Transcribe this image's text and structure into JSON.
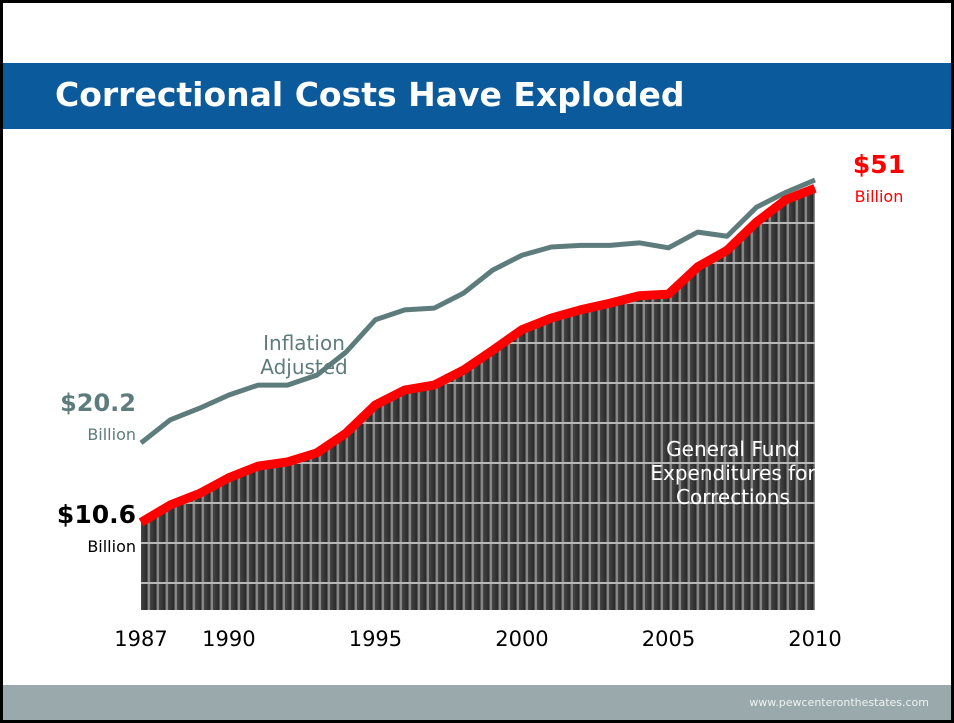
{
  "chart_data": {
    "type": "line",
    "title": "Correctional Costs Have Exploded",
    "source": "www.pewcenteronthestates.com",
    "x": [
      1987,
      1988,
      1989,
      1990,
      1991,
      1992,
      1993,
      1994,
      1995,
      1996,
      1997,
      1998,
      1999,
      2000,
      2001,
      2002,
      2003,
      2004,
      2005,
      2006,
      2007,
      2008,
      2009,
      2010
    ],
    "xlim": [
      1987,
      2010
    ],
    "xticks": [
      1987,
      1990,
      1995,
      2000,
      2005,
      2010
    ],
    "ylim": [
      0,
      52
    ],
    "series": [
      {
        "name": "Inflation Adjusted",
        "color": "#5f7c7c",
        "values": [
          20.2,
          23.0,
          24.4,
          26.0,
          27.2,
          27.2,
          28.4,
          31.2,
          35.1,
          36.3,
          36.5,
          38.3,
          41.1,
          42.9,
          43.9,
          44.1,
          44.1,
          44.4,
          43.8,
          45.7,
          45.2,
          48.7,
          50.5,
          52.0
        ],
        "value_labels": [
          "$20.2",
          null,
          null,
          null,
          null,
          null,
          null,
          null,
          null,
          null,
          null,
          null,
          null,
          null,
          null,
          null,
          null,
          null,
          null,
          null,
          null,
          null,
          null,
          null
        ]
      },
      {
        "name": "General Fund Expenditures for Corrections",
        "color": "#ff0000",
        "values": [
          10.6,
          12.7,
          14.1,
          16.0,
          17.4,
          17.9,
          19.0,
          21.4,
          24.8,
          26.6,
          27.2,
          29.0,
          31.4,
          33.9,
          35.3,
          36.3,
          37.1,
          38.0,
          38.2,
          41.5,
          43.5,
          46.9,
          49.6,
          51
        ],
        "value_labels": [
          "$10.6",
          null,
          null,
          null,
          null,
          null,
          null,
          null,
          null,
          null,
          null,
          null,
          null,
          null,
          null,
          null,
          null,
          null,
          null,
          null,
          null,
          null,
          null,
          "$51"
        ]
      }
    ],
    "annotations": [
      "Billion",
      "Billion",
      "Billion"
    ]
  }
}
